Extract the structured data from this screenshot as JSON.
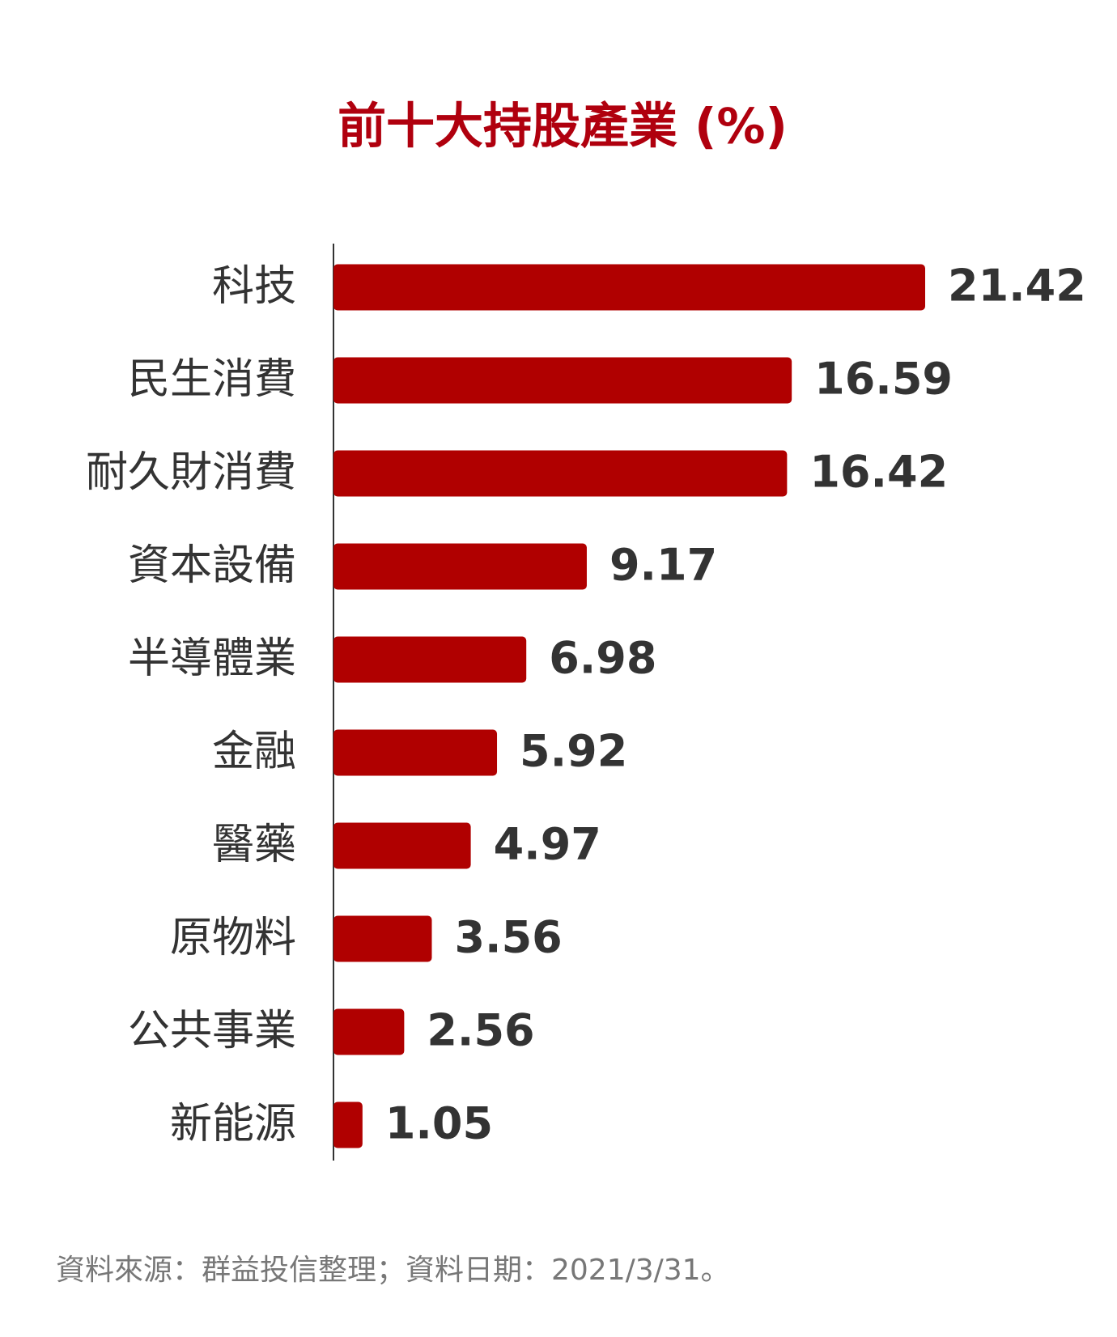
{
  "chart_data": {
    "type": "bar",
    "title": "前十大持股產業 (%)",
    "categories": [
      "科技",
      "民生消費",
      "耐久財消費",
      "資本設備",
      "半導體業",
      "金融",
      "醫藥",
      "原物料",
      "公共事業",
      "新能源"
    ],
    "values": [
      21.42,
      16.59,
      16.42,
      9.17,
      6.98,
      5.92,
      4.97,
      3.56,
      2.56,
      1.05
    ],
    "color": "#b00000",
    "source": "資料來源：群益投信整理；資料日期：2021/3/31。"
  }
}
